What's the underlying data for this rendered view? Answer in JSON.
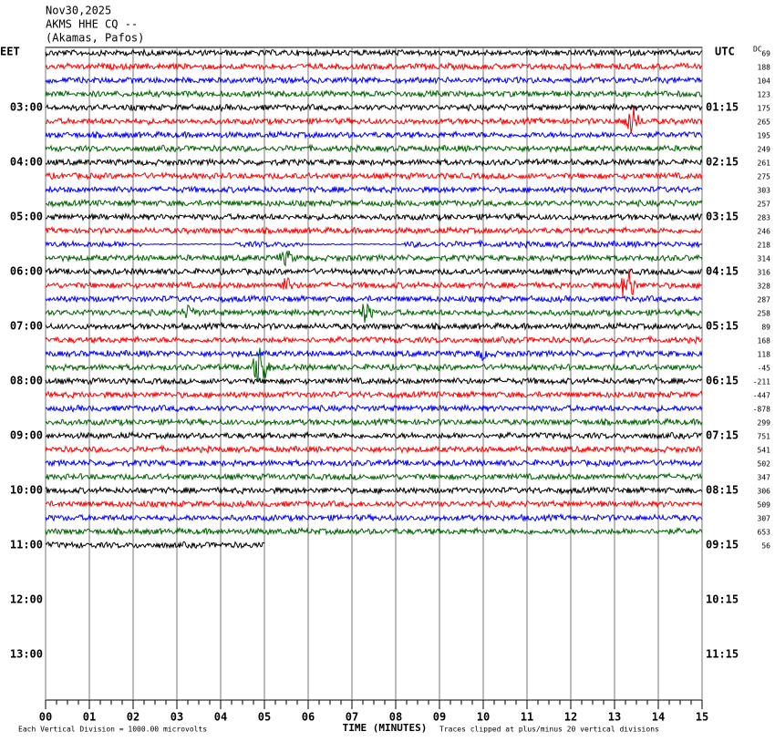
{
  "header": {
    "lines": [
      "Nov30,2025",
      "AKMS HHE CQ --",
      "(Akamas, Pafos)"
    ]
  },
  "left_zone": "EET",
  "right_zone": "UTC",
  "offset_heading": "DC",
  "left_hours": [
    "03:00",
    "04:00",
    "05:00",
    "06:00",
    "07:00",
    "08:00",
    "09:00",
    "10:00",
    "11:00",
    "12:00",
    "13:00"
  ],
  "right_hours": [
    "01:15",
    "02:15",
    "03:15",
    "04:15",
    "05:15",
    "06:15",
    "07:15",
    "08:15",
    "09:15",
    "10:15",
    "11:15"
  ],
  "dc_offsets": [
    69,
    188,
    104,
    123,
    175,
    265,
    195,
    249,
    261,
    275,
    303,
    257,
    283,
    246,
    218,
    314,
    316,
    328,
    287,
    258,
    89,
    168,
    118,
    -45,
    -211,
    -447,
    -878,
    299,
    751,
    541,
    502,
    347,
    306,
    509,
    307,
    653,
    56
  ],
  "trace_colors": [
    "#000000",
    "#ff0000",
    "#0000ff",
    "#006400"
  ],
  "last_trace_end": 5,
  "xlim": [
    0,
    15
  ],
  "xticks": [
    {
      "value": 0,
      "label": "00"
    },
    {
      "value": 1,
      "label": "01"
    },
    {
      "value": 2,
      "label": "02"
    },
    {
      "value": 3,
      "label": "03"
    },
    {
      "value": 4,
      "label": "04"
    },
    {
      "value": 5,
      "label": "05"
    },
    {
      "value": 6,
      "label": "06"
    },
    {
      "value": 7,
      "label": "07"
    },
    {
      "value": 8,
      "label": "08"
    },
    {
      "value": 9,
      "label": "09"
    },
    {
      "value": 10,
      "label": "10"
    },
    {
      "value": 11,
      "label": "11"
    },
    {
      "value": 12,
      "label": "12"
    },
    {
      "value": 13,
      "label": "13"
    },
    {
      "value": 14,
      "label": "14"
    },
    {
      "value": 15,
      "label": "15"
    }
  ],
  "x_label": "TIME (MINUTES)",
  "footer_left": "Each Vertical Division = 1000.00 microvolts",
  "footer_right": "Traces clipped at plus/minus 20 vertical divisions"
}
